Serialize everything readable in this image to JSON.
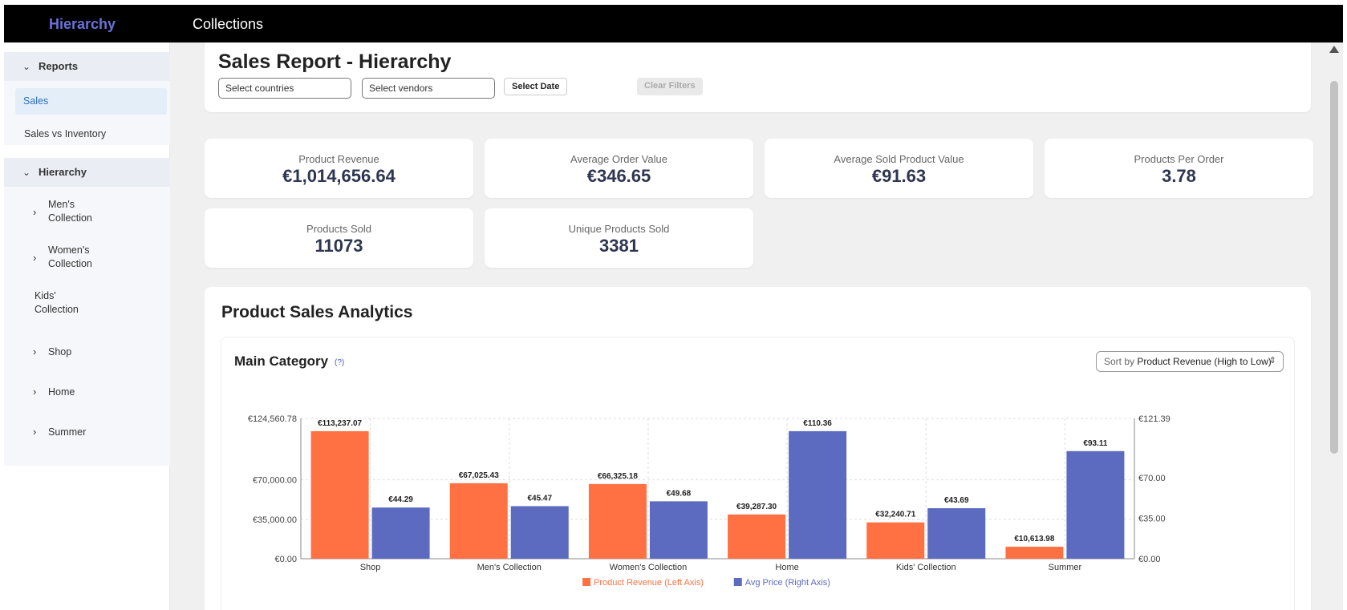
{
  "app": {
    "brand": "Hierarchy",
    "top_nav": "Collections"
  },
  "sidebar": {
    "reports_header": "Reports",
    "reports_items": [
      {
        "label": "Sales",
        "active": true
      },
      {
        "label": "Sales vs Inventory",
        "active": false
      }
    ],
    "hierarchy_header": "Hierarchy",
    "hierarchy_items": [
      {
        "label_line1": "Men's",
        "label_line2": "Collection",
        "expandable": true
      },
      {
        "label_line1": "Women's",
        "label_line2": "Collection",
        "expandable": true
      },
      {
        "label_line1": "Kids'",
        "label_line2": "Collection",
        "expandable": false
      },
      {
        "label_line1": "Shop",
        "label_line2": "",
        "expandable": true
      },
      {
        "label_line1": "Home",
        "label_line2": "",
        "expandable": true
      },
      {
        "label_line1": "Summer",
        "label_line2": "",
        "expandable": true
      }
    ]
  },
  "header": {
    "title": "Sales Report - Hierarchy",
    "countries_placeholder": "Select countries",
    "vendors_placeholder": "Select vendors",
    "date_button": "Select Date",
    "clear_button": "Clear Filters"
  },
  "kpis": [
    {
      "label": "Product Revenue",
      "value": "€1,014,656.64"
    },
    {
      "label": "Average Order Value",
      "value": "€346.65"
    },
    {
      "label": "Average Sold Product Value",
      "value": "€91.63"
    },
    {
      "label": "Products Per Order",
      "value": "3.78"
    },
    {
      "label": "Products Sold",
      "value": "11073"
    },
    {
      "label": "Unique Products Sold",
      "value": "3381"
    }
  ],
  "analytics": {
    "title": "Product Sales Analytics",
    "chart_title": "Main Category",
    "help": "(?)",
    "sort_prefix": "Sort by",
    "sort_value": "Product Revenue (High to Low)"
  },
  "colors": {
    "revenue": "#ff7043",
    "price": "#5c6bc0",
    "brand": "#6a72d8"
  },
  "chart_data": {
    "type": "bar",
    "categories": [
      "Shop",
      "Men's Collection",
      "Women's Collection",
      "Home",
      "Kids' Collection",
      "Summer"
    ],
    "series": [
      {
        "name": "Product Revenue (Left Axis)",
        "axis": "left",
        "values": [
          113237.07,
          67025.43,
          66325.18,
          39287.3,
          32240.71,
          10613.98
        ],
        "labels": [
          "€113,237.07",
          "€67,025.43",
          "€66,325.18",
          "€39,287.30",
          "€32,240.71",
          "€10,613.98"
        ]
      },
      {
        "name": "Avg Price (Right Axis)",
        "axis": "right",
        "values": [
          44.29,
          45.47,
          49.68,
          110.36,
          43.69,
          93.11
        ],
        "labels": [
          "€44.29",
          "€45.47",
          "€49.68",
          "€110.36",
          "€43.69",
          "€93.11"
        ]
      }
    ],
    "left_axis": {
      "ylim": [
        0,
        124560.78
      ],
      "ticks": [
        0,
        35000,
        70000,
        124560.78
      ],
      "tick_labels": [
        "€0.00",
        "€35,000.00",
        "€70,000.00",
        "€124,560.78"
      ]
    },
    "right_axis": {
      "ylim": [
        0,
        121.39
      ],
      "ticks": [
        0,
        35,
        70,
        121.39
      ],
      "tick_labels": [
        "€0.00",
        "€35.00",
        "€70.00",
        "€121.39"
      ]
    },
    "grid": true,
    "legend": "bottom"
  }
}
